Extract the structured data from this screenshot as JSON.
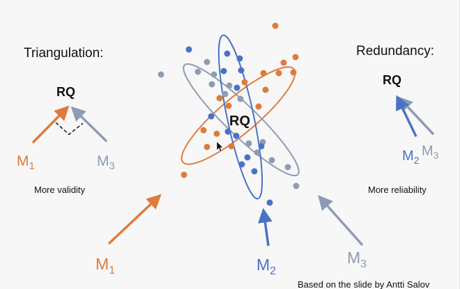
{
  "colors": {
    "orange": "#E07B39",
    "blue": "#4A72C4",
    "gray": "#8E9CB3",
    "text": "#111111",
    "background": "#f7f7f8"
  },
  "left": {
    "title": "Triangulation:",
    "rq": "RQ",
    "m_a": {
      "letter": "M",
      "sub": "1"
    },
    "m_b": {
      "letter": "M",
      "sub": "3"
    },
    "caption": "More validity"
  },
  "right": {
    "title": "Redundancy:",
    "rq": "RQ",
    "m_a": {
      "letter": "M",
      "sub": "2"
    },
    "m_b": {
      "letter": "M",
      "sub": "3"
    },
    "caption": "More reliability"
  },
  "center": {
    "rq": "RQ",
    "m1": {
      "letter": "M",
      "sub": "1"
    },
    "m2": {
      "letter": "M",
      "sub": "2"
    },
    "m3": {
      "letter": "M",
      "sub": "3"
    }
  },
  "credit": "Based on the slide by Antti Salov"
}
